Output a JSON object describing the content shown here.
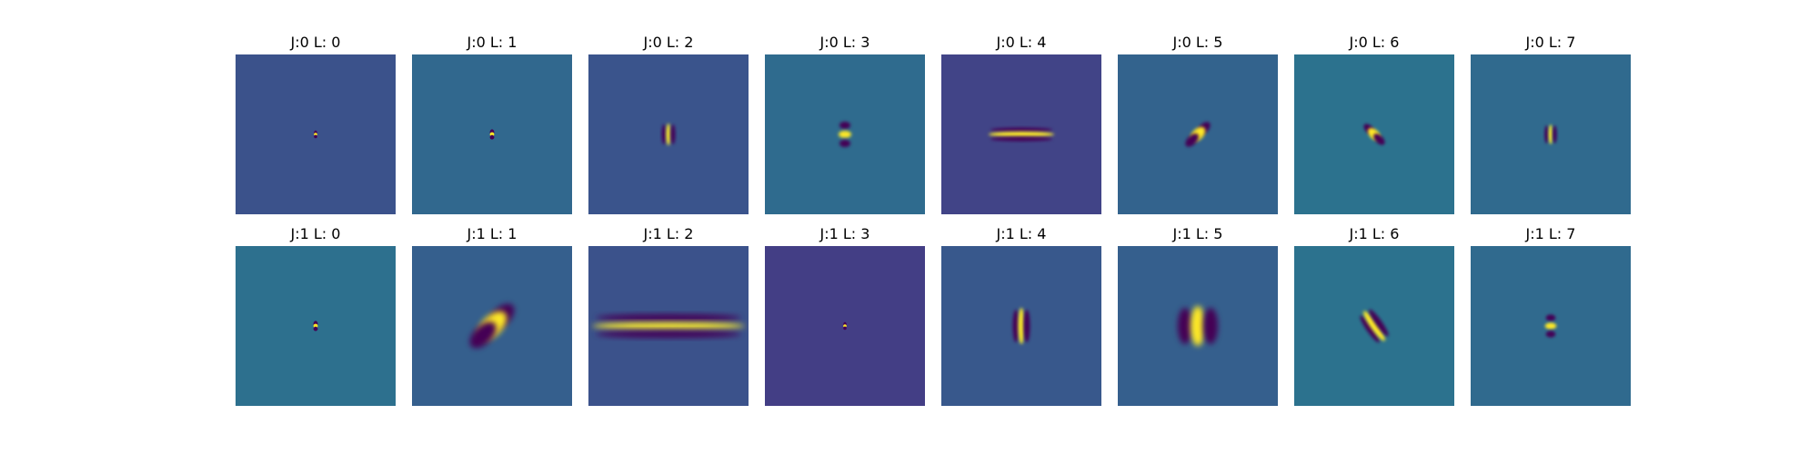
{
  "figure": {
    "panels": [
      {
        "title": "J:0 L: 0",
        "background": "#3b528b",
        "pattern": "dot",
        "angle": 0,
        "scale": 0.6
      },
      {
        "title": "J:0 L: 1",
        "background": "#31688e",
        "pattern": "dot",
        "angle": 45,
        "scale": 0.8
      },
      {
        "title": "J:0 L: 2",
        "background": "#3a548c",
        "pattern": "vertical-bars",
        "angle": 0,
        "scale": 1.0
      },
      {
        "title": "J:0 L: 3",
        "background": "#2f6b8e",
        "pattern": "horizontal-bars-small",
        "angle": 0,
        "scale": 1.0
      },
      {
        "title": "J:0 L: 4",
        "background": "#414487",
        "pattern": "horizontal-streak",
        "angle": 0,
        "scale": 1.0
      },
      {
        "title": "J:0 L: 5",
        "background": "#33638d",
        "pattern": "diagonal-blob",
        "angle": 45,
        "scale": 1.0
      },
      {
        "title": "J:0 L: 6",
        "background": "#2c728e",
        "pattern": "diagonal-blob",
        "angle": -45,
        "scale": 0.85
      },
      {
        "title": "J:0 L: 7",
        "background": "#306a8e",
        "pattern": "vertical-bars",
        "angle": 0,
        "scale": 0.9
      },
      {
        "title": "J:1 L: 0",
        "background": "#2d708e",
        "pattern": "dot",
        "angle": 45,
        "scale": 0.8
      },
      {
        "title": "J:1 L: 1",
        "background": "#355f8d",
        "pattern": "diagonal-large",
        "angle": 45,
        "scale": 1.0
      },
      {
        "title": "J:1 L: 2",
        "background": "#3b528b",
        "pattern": "horizontal-wide",
        "angle": 0,
        "scale": 1.0
      },
      {
        "title": "J:1 L: 3",
        "background": "#433e85",
        "pattern": "dot",
        "angle": 0,
        "scale": 0.6
      },
      {
        "title": "J:1 L: 4",
        "background": "#38588c",
        "pattern": "vertical-bars-tall",
        "angle": 0,
        "scale": 1.0
      },
      {
        "title": "J:1 L: 5",
        "background": "#355f8d",
        "pattern": "vertical-large",
        "angle": 0,
        "scale": 1.0
      },
      {
        "title": "J:1 L: 6",
        "background": "#2c728e",
        "pattern": "diagonal-narrow",
        "angle": -35,
        "scale": 1.0
      },
      {
        "title": "J:1 L: 7",
        "background": "#306a8e",
        "pattern": "horizontal-bars-small",
        "angle": 0,
        "scale": 0.9
      }
    ]
  },
  "colors": {
    "dark": "#440154",
    "bright": "#fde725",
    "green": "#35b779",
    "teal": "#21918c"
  }
}
